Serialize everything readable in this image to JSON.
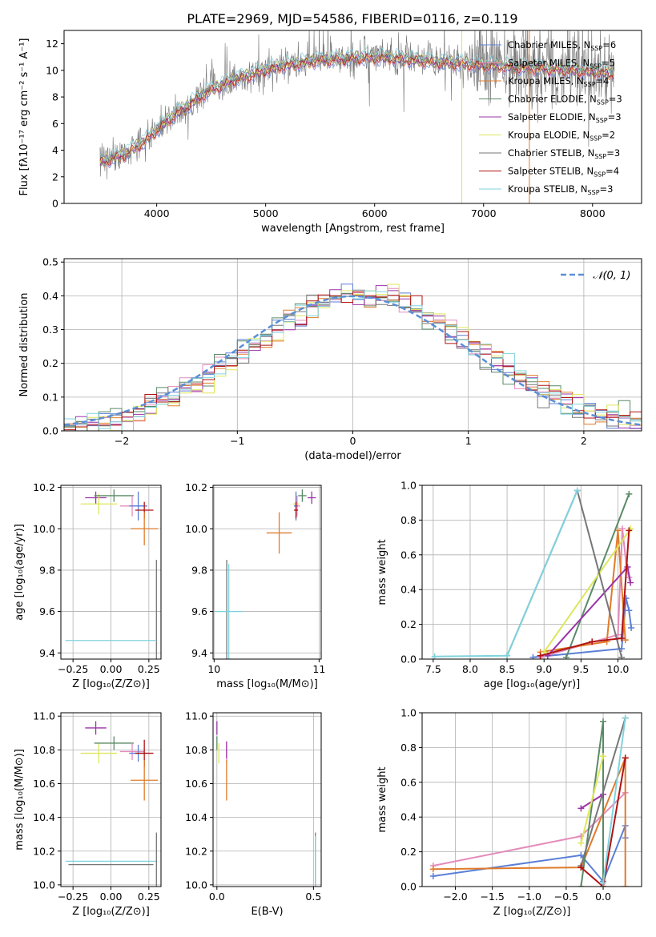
{
  "title": "PLATE=2969, MJD=54586, FIBERID=0116, z=0.119",
  "colors": {
    "chabrier_miles": "#5b7fd6",
    "salpeter_miles": "#e48bbb",
    "kroupa_miles": "#e07b2a",
    "chabrier_elodie": "#5a8a67",
    "salpeter_elodie": "#9a34a8",
    "kroupa_elodie": "#dde65a",
    "chabrier_stelib": "#777777",
    "salpeter_stelib": "#b01313",
    "kroupa_stelib": "#7fd3de",
    "normal": "#5b8fd6"
  },
  "chart_data": [
    {
      "panel": "spectrum",
      "type": "line",
      "xlabel": "wavelength [Angstrom, rest frame]",
      "ylabel": "Flux [fλ10⁻¹⁷ erg cm⁻² s⁻¹ A⁻¹]",
      "xlim": [
        3150,
        8450
      ],
      "ylim": [
        0,
        13
      ],
      "xticks": [
        4000,
        5000,
        6000,
        7000,
        8000
      ],
      "yticks": [
        0,
        2,
        4,
        6,
        8,
        10,
        12
      ],
      "grid": false,
      "legend": "right",
      "data_wavelength": [
        3500,
        3700,
        3900,
        4100,
        4300,
        4500,
        4700,
        4900,
        5100,
        5300,
        5500,
        5700,
        5900,
        6100,
        6300,
        6500,
        6700,
        6900,
        7100,
        7300,
        7500,
        7700,
        7900,
        8100,
        8200
      ],
      "data_flux": [
        3.2,
        3.7,
        4.8,
        6.3,
        7.5,
        8.6,
        9.3,
        9.8,
        10.3,
        10.6,
        10.8,
        10.9,
        11.0,
        11.0,
        10.9,
        10.7,
        10.6,
        10.5,
        10.4,
        10.3,
        10.2,
        10.1,
        10.0,
        9.9,
        9.8
      ],
      "series": [
        {
          "name": "Chabrier MILES, N_SSP=6",
          "ssp": 6,
          "key": "chabrier_miles"
        },
        {
          "name": "Salpeter MILES, N_SSP=5",
          "ssp": 5,
          "key": "salpeter_miles"
        },
        {
          "name": "Kroupa MILES, N_SSP=4",
          "ssp": 4,
          "key": "kroupa_miles"
        },
        {
          "name": "Chabrier ELODIE, N_SSP=3",
          "ssp": 3,
          "key": "chabrier_elodie"
        },
        {
          "name": "Salpeter ELODIE, N_SSP=3",
          "ssp": 3,
          "key": "salpeter_elodie"
        },
        {
          "name": "Kroupa ELODIE, N_SSP=2",
          "ssp": 2,
          "key": "kroupa_elodie"
        },
        {
          "name": "Chabrier STELIB, N_SSP=3",
          "ssp": 3,
          "key": "chabrier_stelib"
        },
        {
          "name": "Salpeter STELIB, N_SSP=4",
          "ssp": 4,
          "key": "salpeter_stelib"
        },
        {
          "name": "Kroupa STELIB, N_SSP=3",
          "ssp": 3,
          "key": "kroupa_stelib"
        }
      ]
    },
    {
      "panel": "residuals",
      "type": "line",
      "xlabel": "(data-model)/error",
      "ylabel": "Normed distribution",
      "xlim": [
        -2.5,
        2.5
      ],
      "ylim": [
        0,
        0.51
      ],
      "xticks": [
        -2,
        -1,
        0,
        1,
        2
      ],
      "yticks": [
        0.0,
        0.1,
        0.2,
        0.3,
        0.4,
        0.5
      ],
      "grid": true,
      "legend": "top-right",
      "normal_label": "𝒩(0, 1)",
      "bin_width": 0.1
    },
    {
      "panel": "age_vs_Z",
      "type": "scatter",
      "xlabel": "Z [log₁₀(Z/Z⊙)]",
      "ylabel": "age  [log₁₀(age/yr)]",
      "xlim": [
        -0.33,
        0.33
      ],
      "ylim": [
        9.37,
        10.21
      ],
      "xticks": [
        -0.25,
        0.0,
        0.25
      ],
      "yticks": [
        9.4,
        9.6,
        9.8,
        10.0,
        10.2
      ],
      "grid": true,
      "points": [
        {
          "key": "salpeter_elodie",
          "x": -0.1,
          "y": 10.15,
          "xerr": 0.07,
          "yerr": 0.03
        },
        {
          "key": "kroupa_elodie",
          "x": -0.08,
          "y": 10.12,
          "xerr": 0.12,
          "yerr": 0.05
        },
        {
          "key": "chabrier_elodie",
          "x": 0.02,
          "y": 10.16,
          "xerr": 0.13,
          "yerr": 0.03
        },
        {
          "key": "salpeter_miles",
          "x": 0.14,
          "y": 10.11,
          "xerr": 0.08,
          "yerr": 0.05
        },
        {
          "key": "chabrier_miles",
          "x": 0.18,
          "y": 10.11,
          "xerr": 0.06,
          "yerr": 0.07
        },
        {
          "key": "salpeter_stelib",
          "x": 0.22,
          "y": 10.09,
          "xerr": 0.06,
          "yerr": 0.04
        },
        {
          "key": "kroupa_miles",
          "x": 0.22,
          "y": 10.0,
          "xerr": 0.09,
          "yerr": 0.08
        },
        {
          "key": "chabrier_stelib",
          "x": 0.3,
          "y": 9.6,
          "xerr": 0.0,
          "yerr": 0.25
        },
        {
          "key": "kroupa_stelib",
          "x": 0.0,
          "y": 9.46,
          "xerr": 0.3,
          "yerr": 0.0
        }
      ]
    },
    {
      "panel": "age_vs_mass",
      "type": "scatter",
      "xlabel": "mass [log₁₀(M/M⊙)]",
      "ylabel": "",
      "xlim": [
        9.99,
        11.02
      ],
      "ylim": [
        9.37,
        10.21
      ],
      "xticks": [
        10,
        11
      ],
      "yticks": [
        9.4,
        9.6,
        9.8,
        10.0,
        10.2
      ],
      "grid": true,
      "points": [
        {
          "key": "salpeter_elodie",
          "x": 10.93,
          "y": 10.15,
          "xerr": 0.04,
          "yerr": 0.03
        },
        {
          "key": "kroupa_elodie",
          "x": 10.78,
          "y": 10.12,
          "xerr": 0.03,
          "yerr": 0.05
        },
        {
          "key": "chabrier_elodie",
          "x": 10.84,
          "y": 10.16,
          "xerr": 0.04,
          "yerr": 0.03
        },
        {
          "key": "salpeter_miles",
          "x": 10.79,
          "y": 10.11,
          "xerr": 0.03,
          "yerr": 0.05
        },
        {
          "key": "chabrier_miles",
          "x": 10.78,
          "y": 10.11,
          "xerr": 0.02,
          "yerr": 0.07
        },
        {
          "key": "salpeter_stelib",
          "x": 10.78,
          "y": 10.09,
          "xerr": 0.02,
          "yerr": 0.04
        },
        {
          "key": "kroupa_miles",
          "x": 10.62,
          "y": 9.98,
          "xerr": 0.12,
          "yerr": 0.1
        },
        {
          "key": "chabrier_stelib",
          "x": 10.12,
          "y": 9.6,
          "xerr": 0.0,
          "yerr": 0.25
        },
        {
          "key": "kroupa_stelib",
          "x": 10.14,
          "y": 9.6,
          "xerr": 0.13,
          "yerr": 0.23
        }
      ]
    },
    {
      "panel": "weight_vs_age",
      "type": "line",
      "xlabel": "age  [log₁₀(age/yr)]",
      "ylabel": "mass weight",
      "xlim": [
        7.35,
        10.32
      ],
      "ylim": [
        0,
        1.0
      ],
      "xticks": [
        7.5,
        8.0,
        8.5,
        9.0,
        9.5,
        10.0
      ],
      "yticks": [
        0.0,
        0.2,
        0.4,
        0.6,
        0.8,
        1.0
      ],
      "grid": true,
      "series": [
        {
          "key": "chabrier_miles",
          "x": [
            8.85,
            10.05,
            10.11,
            10.15,
            10.18
          ],
          "y": [
            0.01,
            0.06,
            0.35,
            0.28,
            0.18
          ]
        },
        {
          "key": "salpeter_miles",
          "x": [
            8.95,
            10.0,
            10.06,
            10.12,
            10.15
          ],
          "y": [
            0.01,
            0.14,
            0.75,
            0.52,
            0.47
          ]
        },
        {
          "key": "kroupa_miles",
          "x": [
            8.95,
            9.85,
            10.0,
            10.1
          ],
          "y": [
            0.04,
            0.1,
            0.74,
            0.11
          ]
        },
        {
          "key": "chabrier_elodie",
          "x": [
            9.3,
            10.15
          ],
          "y": [
            0.01,
            0.95
          ]
        },
        {
          "key": "salpeter_elodie",
          "x": [
            9.05,
            10.13,
            10.17
          ],
          "y": [
            0.02,
            0.53,
            0.44
          ]
        },
        {
          "key": "kroupa_elodie",
          "x": [
            9.0,
            10.17
          ],
          "y": [
            0.04,
            0.75
          ]
        },
        {
          "key": "chabrier_stelib",
          "x": [
            8.5,
            9.45,
            10.05
          ],
          "y": [
            0.02,
            0.97,
            0.01
          ]
        },
        {
          "key": "salpeter_stelib",
          "x": [
            8.95,
            9.65,
            10.05,
            10.15
          ],
          "y": [
            0.02,
            0.1,
            0.12,
            0.74
          ]
        },
        {
          "key": "kroupa_stelib",
          "x": [
            7.52,
            8.5,
            9.45
          ],
          "y": [
            0.015,
            0.02,
            0.97
          ]
        }
      ]
    },
    {
      "panel": "mass_vs_Z",
      "type": "scatter",
      "xlabel": "Z [log₁₀(Z/Z⊙)]",
      "ylabel": "mass [log₁₀(M/M⊙)]",
      "xlim": [
        -0.33,
        0.33
      ],
      "ylim": [
        9.99,
        11.02
      ],
      "xticks": [
        -0.25,
        0.0,
        0.25
      ],
      "yticks": [
        10.0,
        10.2,
        10.4,
        10.6,
        10.8,
        11.0
      ],
      "grid": true,
      "points": [
        {
          "key": "salpeter_elodie",
          "x": -0.1,
          "y": 10.93,
          "xerr": 0.07,
          "yerr": 0.04
        },
        {
          "key": "kroupa_elodie",
          "x": -0.08,
          "y": 10.78,
          "xerr": 0.12,
          "yerr": 0.06
        },
        {
          "key": "chabrier_elodie",
          "x": 0.02,
          "y": 10.84,
          "xerr": 0.13,
          "yerr": 0.04
        },
        {
          "key": "salpeter_miles",
          "x": 0.14,
          "y": 10.79,
          "xerr": 0.08,
          "yerr": 0.05
        },
        {
          "key": "chabrier_miles",
          "x": 0.18,
          "y": 10.78,
          "xerr": 0.06,
          "yerr": 0.05
        },
        {
          "key": "salpeter_stelib",
          "x": 0.22,
          "y": 10.78,
          "xerr": 0.06,
          "yerr": 0.08
        },
        {
          "key": "kroupa_miles",
          "x": 0.22,
          "y": 10.62,
          "xerr": 0.09,
          "yerr": 0.12
        },
        {
          "key": "chabrier_stelib",
          "x": 0.0,
          "y": 10.12,
          "xerr": 0.28,
          "yerr": 0.0
        },
        {
          "key": "kroupa_stelib",
          "x": 0.0,
          "y": 10.14,
          "xerr": 0.3,
          "yerr": 0.0
        },
        {
          "key": "chabrier_stelib",
          "x": 0.3,
          "y": 10.14,
          "xerr": 0.0,
          "yerr": 0.17
        }
      ]
    },
    {
      "panel": "mass_vs_ebv",
      "type": "scatter",
      "xlabel": "E(B-V)",
      "ylabel": "",
      "xlim": [
        -0.02,
        0.54
      ],
      "ylim": [
        9.99,
        11.02
      ],
      "xticks": [
        0.0,
        0.5
      ],
      "yticks": [
        10.0,
        10.2,
        10.4,
        10.6,
        10.8,
        11.0
      ],
      "grid": true,
      "points": [
        {
          "key": "salpeter_elodie",
          "x": 0.0,
          "y": 10.93,
          "xerr": 0.0,
          "yerr": 0.04
        },
        {
          "key": "kroupa_elodie",
          "x": 0.01,
          "y": 10.78,
          "xerr": 0.0,
          "yerr": 0.06
        },
        {
          "key": "chabrier_elodie",
          "x": 0.0,
          "y": 10.84,
          "xerr": 0.0,
          "yerr": 0.04
        },
        {
          "key": "salpeter_miles",
          "x": 0.05,
          "y": 10.79,
          "xerr": 0.0,
          "yerr": 0.06
        },
        {
          "key": "salpeter_elodie",
          "x": 0.05,
          "y": 10.8,
          "xerr": 0.0,
          "yerr": 0.05
        },
        {
          "key": "kroupa_miles",
          "x": 0.05,
          "y": 10.62,
          "xerr": 0.0,
          "yerr": 0.12
        },
        {
          "key": "chabrier_stelib",
          "x": 0.51,
          "y": 10.14,
          "xerr": 0.0,
          "yerr": 0.17
        },
        {
          "key": "kroupa_stelib",
          "x": 0.51,
          "y": 10.14,
          "xerr": 0.0,
          "yerr": 0.15
        }
      ]
    },
    {
      "panel": "weight_vs_Z",
      "type": "line",
      "xlabel": "Z [log₁₀(Z/Z⊙)]",
      "ylabel": "mass weight",
      "xlim": [
        -2.45,
        0.52
      ],
      "ylim": [
        0,
        1.0
      ],
      "xticks": [
        -2.0,
        -1.5,
        -1.0,
        -0.5,
        0.0
      ],
      "yticks": [
        0.0,
        0.2,
        0.4,
        0.6,
        0.8,
        1.0
      ],
      "grid": true,
      "series": [
        {
          "key": "chabrier_miles",
          "x": [
            -2.3,
            -0.3,
            0.0,
            0.3,
            0.3
          ],
          "y": [
            0.06,
            0.18,
            0.03,
            0.35,
            0.28
          ]
        },
        {
          "key": "salpeter_miles",
          "x": [
            -2.3,
            -0.3,
            0.3
          ],
          "y": [
            0.12,
            0.29,
            0.54
          ]
        },
        {
          "key": "kroupa_miles",
          "x": [
            -2.3,
            -0.3,
            0.3,
            0.3
          ],
          "y": [
            0.1,
            0.11,
            0.74,
            0.0
          ]
        },
        {
          "key": "chabrier_elodie",
          "x": [
            -0.3,
            0.0,
            0.0
          ],
          "y": [
            0.0,
            0.95,
            0.0
          ]
        },
        {
          "key": "salpeter_elodie",
          "x": [
            -0.3,
            0.0
          ],
          "y": [
            0.45,
            0.53
          ]
        },
        {
          "key": "kroupa_elodie",
          "x": [
            -0.3,
            0.0
          ],
          "y": [
            0.25,
            0.75
          ]
        },
        {
          "key": "chabrier_stelib",
          "x": [
            -0.3,
            0.3
          ],
          "y": [
            0.12,
            0.97
          ]
        },
        {
          "key": "salpeter_stelib",
          "x": [
            -0.3,
            0.0,
            0.3
          ],
          "y": [
            0.11,
            0.0,
            0.74
          ]
        },
        {
          "key": "kroupa_stelib",
          "x": [
            0.0,
            0.3
          ],
          "y": [
            0.02,
            0.97
          ]
        }
      ]
    }
  ]
}
